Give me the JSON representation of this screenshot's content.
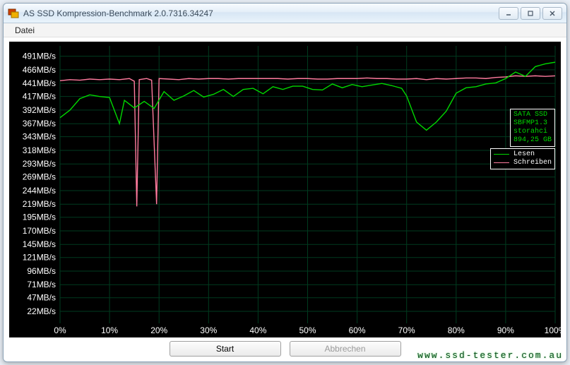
{
  "window": {
    "title": "AS SSD Kompression-Benchmark 2.0.7316.34247",
    "minimize_tooltip": "Minimize",
    "maximize_tooltip": "Maximize",
    "close_tooltip": "Close"
  },
  "menu": {
    "datei": "Datei"
  },
  "chart": {
    "background": "#000000",
    "grid_color": "#003b1f",
    "axis_text_color": "#ffffff",
    "y_axis_unit": "MB/s",
    "y_ticks": [
      22,
      47,
      71,
      96,
      121,
      145,
      170,
      195,
      219,
      244,
      269,
      293,
      318,
      343,
      367,
      392,
      417,
      441,
      466,
      491
    ],
    "y_min": 0,
    "y_max": 510,
    "x_ticks": [
      0,
      10,
      20,
      30,
      40,
      50,
      60,
      70,
      80,
      90,
      100
    ],
    "x_tick_suffix": "%",
    "x_min": 0,
    "x_max": 100,
    "series": {
      "lesen": {
        "label": "Lesen",
        "color": "#00d800",
        "points": [
          [
            0,
            378
          ],
          [
            2,
            392
          ],
          [
            4,
            413
          ],
          [
            6,
            420
          ],
          [
            8,
            417
          ],
          [
            10,
            415
          ],
          [
            12,
            367
          ],
          [
            13,
            410
          ],
          [
            15,
            396
          ],
          [
            17,
            408
          ],
          [
            19,
            395
          ],
          [
            21,
            426
          ],
          [
            23,
            410
          ],
          [
            25,
            418
          ],
          [
            27,
            428
          ],
          [
            29,
            416
          ],
          [
            31,
            421
          ],
          [
            33,
            430
          ],
          [
            35,
            417
          ],
          [
            37,
            430
          ],
          [
            39,
            432
          ],
          [
            41,
            422
          ],
          [
            43,
            435
          ],
          [
            45,
            430
          ],
          [
            47,
            436
          ],
          [
            49,
            436
          ],
          [
            51,
            430
          ],
          [
            53,
            429
          ],
          [
            55,
            440
          ],
          [
            57,
            433
          ],
          [
            59,
            439
          ],
          [
            61,
            435
          ],
          [
            63,
            438
          ],
          [
            65,
            441
          ],
          [
            67,
            437
          ],
          [
            69,
            432
          ],
          [
            70,
            418
          ],
          [
            72,
            370
          ],
          [
            74,
            355
          ],
          [
            76,
            370
          ],
          [
            78,
            390
          ],
          [
            80,
            423
          ],
          [
            82,
            433
          ],
          [
            84,
            435
          ],
          [
            86,
            440
          ],
          [
            88,
            442
          ],
          [
            90,
            450
          ],
          [
            92,
            462
          ],
          [
            94,
            454
          ],
          [
            96,
            472
          ],
          [
            98,
            477
          ],
          [
            100,
            480
          ]
        ]
      },
      "schreiben": {
        "label": "Schreiben",
        "color": "#ff7b9e",
        "points": [
          [
            0,
            446
          ],
          [
            2,
            448
          ],
          [
            4,
            447
          ],
          [
            6,
            449
          ],
          [
            8,
            448
          ],
          [
            10,
            449
          ],
          [
            12,
            448
          ],
          [
            14,
            450
          ],
          [
            15,
            445
          ],
          [
            15.5,
            215
          ],
          [
            16,
            448
          ],
          [
            17.5,
            450
          ],
          [
            18.5,
            447
          ],
          [
            19.5,
            219
          ],
          [
            20,
            450
          ],
          [
            22,
            449
          ],
          [
            24,
            448
          ],
          [
            26,
            450
          ],
          [
            28,
            449
          ],
          [
            30,
            450
          ],
          [
            32,
            450
          ],
          [
            34,
            449
          ],
          [
            36,
            450
          ],
          [
            38,
            450
          ],
          [
            40,
            450
          ],
          [
            42,
            450
          ],
          [
            44,
            450
          ],
          [
            46,
            449
          ],
          [
            48,
            450
          ],
          [
            50,
            450
          ],
          [
            52,
            449
          ],
          [
            54,
            449
          ],
          [
            56,
            450
          ],
          [
            58,
            450
          ],
          [
            60,
            450
          ],
          [
            62,
            451
          ],
          [
            64,
            450
          ],
          [
            66,
            450
          ],
          [
            68,
            449
          ],
          [
            70,
            449
          ],
          [
            72,
            450
          ],
          [
            74,
            448
          ],
          [
            76,
            450
          ],
          [
            78,
            449
          ],
          [
            80,
            450
          ],
          [
            82,
            451
          ],
          [
            84,
            451
          ],
          [
            86,
            450
          ],
          [
            88,
            452
          ],
          [
            90,
            453
          ],
          [
            92,
            455
          ],
          [
            94,
            454
          ],
          [
            96,
            455
          ],
          [
            98,
            454
          ],
          [
            100,
            455
          ]
        ]
      }
    },
    "info_box": {
      "lines": [
        "SATA SSD",
        "SBFMP1.3",
        "storahci",
        "894,25 GB"
      ],
      "text_color": "#00d800",
      "border_color": "#ffffff"
    },
    "legend": {
      "text_color": "#ffffff"
    }
  },
  "buttons": {
    "start": "Start",
    "abort": "Abbrechen"
  },
  "watermark": "www.ssd-tester.com.au"
}
